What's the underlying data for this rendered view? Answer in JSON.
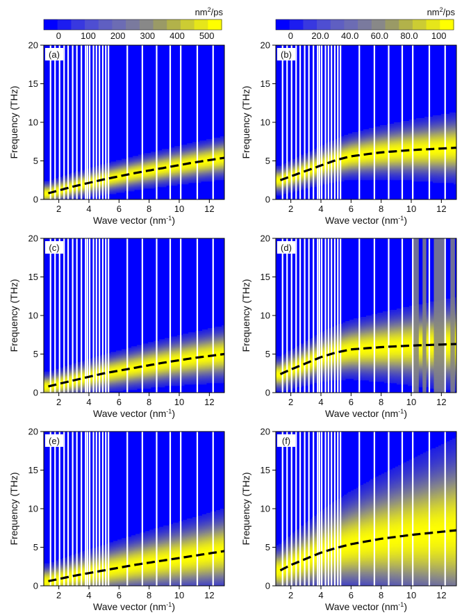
{
  "colorbars": [
    {
      "unit_base": "nm",
      "unit_sup": "2",
      "unit_tail": "/ps",
      "vmin": -50,
      "vmax": 550,
      "ticks": [
        0,
        100,
        200,
        300,
        400,
        500
      ],
      "tick_labels": [
        "0",
        "100",
        "200",
        "300",
        "400",
        "500"
      ],
      "colors": [
        "#0000ff",
        "#1c1cf0",
        "#3838e0",
        "#4e4ed2",
        "#5f5fc2",
        "#6c6cb4",
        "#7a7a9e",
        "#888888",
        "#9a9a66",
        "#b2b24a",
        "#cccc33",
        "#e6e61a",
        "#ffff00"
      ]
    },
    {
      "unit_base": "nm",
      "unit_sup": "2",
      "unit_tail": "/ps",
      "vmin": -10,
      "vmax": 110,
      "ticks": [
        0,
        20,
        40,
        60,
        80,
        100
      ],
      "tick_labels": [
        "0",
        "20.0",
        "40.0",
        "60.0",
        "80.0",
        "100"
      ],
      "colors": [
        "#0000ff",
        "#1c1cf0",
        "#3838e0",
        "#4e4ed2",
        "#5f5fc2",
        "#6c6cb4",
        "#7a7a9e",
        "#888888",
        "#9a9a66",
        "#b2b24a",
        "#cccc33",
        "#e6e61a",
        "#ffff00"
      ]
    }
  ],
  "axes": {
    "xlabel_base": "Wave vector (nm",
    "xlabel_sup": "-1",
    "xlabel_tail": ")",
    "ylabel": "Frequency (THz)",
    "xlim": [
      1.0,
      13.0
    ],
    "ylim": [
      0,
      20
    ],
    "xticks": [
      2,
      4,
      6,
      8,
      10,
      12
    ],
    "xtick_labels": [
      "2",
      "4",
      "6",
      "8",
      "10",
      "12"
    ],
    "yticks": [
      0,
      5,
      10,
      15,
      20
    ],
    "ytick_labels": [
      "0",
      "5",
      "10",
      "15",
      "20"
    ]
  },
  "white_gap_k": [
    1.45,
    1.75,
    2.05,
    2.35,
    2.62,
    2.92,
    3.2,
    3.5,
    3.78,
    3.9,
    4.05,
    4.3,
    4.5,
    4.7,
    4.92,
    5.12,
    5.3,
    6.55,
    7.55,
    8.5,
    9.4,
    10.1,
    11.2,
    12.25
  ],
  "chart_data": [
    {
      "type": "heatmap",
      "label": "(a)",
      "colorbar": 0,
      "dispersion_curve": {
        "x": [
          1.3,
          3,
          5,
          7,
          9,
          11,
          13
        ],
        "y": [
          0.8,
          1.7,
          2.6,
          3.4,
          4.1,
          4.8,
          5.4
        ]
      },
      "peak_width": 1.3,
      "spread": 0.15,
      "background": 0,
      "grey_columns": []
    },
    {
      "type": "heatmap",
      "label": "(b)",
      "colorbar": 1,
      "dispersion_curve": {
        "x": [
          1.3,
          2,
          3,
          4,
          5,
          6,
          8,
          10,
          13
        ],
        "y": [
          2.5,
          3.0,
          3.7,
          4.4,
          5.1,
          5.6,
          6.1,
          6.4,
          6.7
        ]
      },
      "peak_width": 1.5,
      "spread": 0.3,
      "background": 0,
      "grey_columns": []
    },
    {
      "type": "heatmap",
      "label": "(c)",
      "colorbar": 0,
      "dispersion_curve": {
        "x": [
          1.3,
          3,
          5,
          7,
          9,
          11,
          13
        ],
        "y": [
          0.8,
          1.6,
          2.5,
          3.2,
          3.9,
          4.5,
          5.0
        ]
      },
      "peak_width": 1.5,
      "spread": 0.2,
      "background": 0,
      "grey_columns": []
    },
    {
      "type": "heatmap",
      "label": "(d)",
      "colorbar": 1,
      "dispersion_curve": {
        "x": [
          1.3,
          2,
          3,
          4,
          5,
          6,
          8,
          10,
          13
        ],
        "y": [
          2.4,
          3.0,
          3.8,
          4.6,
          5.2,
          5.6,
          5.9,
          6.1,
          6.3
        ]
      },
      "peak_width": 1.8,
      "spread": 0.35,
      "background": 0,
      "grey_columns": [
        [
          10.1,
          10.5
        ],
        [
          10.75,
          11.0
        ],
        [
          11.5,
          12.2
        ],
        [
          12.6,
          12.9
        ]
      ]
    },
    {
      "type": "heatmap",
      "label": "(e)",
      "colorbar": 0,
      "dispersion_curve": {
        "x": [
          1.3,
          3,
          5,
          7,
          9,
          11,
          13
        ],
        "y": [
          0.6,
          1.3,
          2.0,
          2.7,
          3.3,
          3.9,
          4.5
        ]
      },
      "peak_width": 1.8,
      "spread": 0.3,
      "background": 0,
      "grey_columns": []
    },
    {
      "type": "heatmap",
      "label": "(f)",
      "colorbar": 1,
      "dispersion_curve": {
        "x": [
          1.3,
          2,
          3,
          4,
          5,
          6,
          8,
          10,
          13
        ],
        "y": [
          2.0,
          2.7,
          3.5,
          4.3,
          4.9,
          5.4,
          6.1,
          6.6,
          7.2
        ]
      },
      "peak_width": 2.6,
      "spread": 0.55,
      "background": 0,
      "grey_columns": []
    }
  ]
}
